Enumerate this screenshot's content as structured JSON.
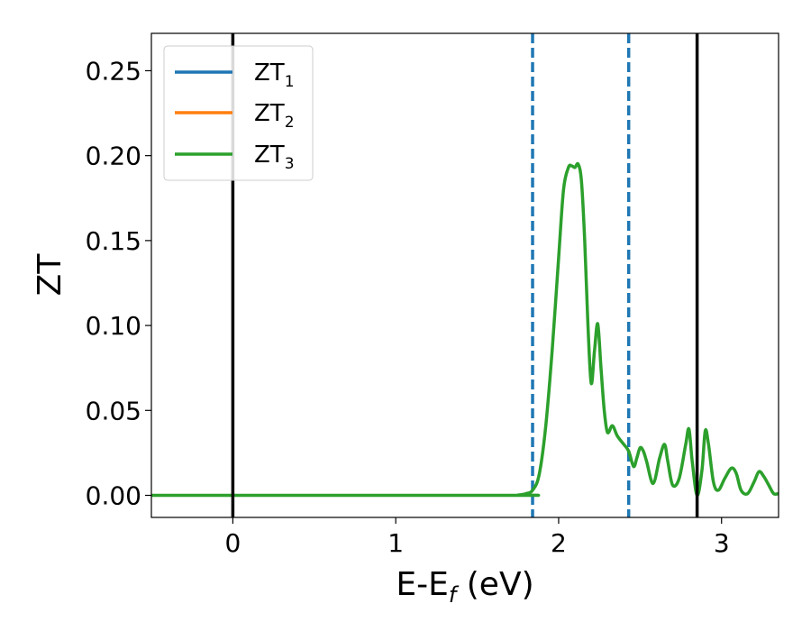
{
  "chart_data": {
    "type": "line",
    "xlabel_main": "E-E",
    "xlabel_sub": "f",
    "xlabel_unit": " (eV)",
    "ylabel": "ZT",
    "xlim": [
      -0.5,
      3.35
    ],
    "ylim": [
      -0.013,
      0.272
    ],
    "xticks": [
      {
        "value": 0,
        "label": "0"
      },
      {
        "value": 1,
        "label": "1"
      },
      {
        "value": 2,
        "label": "2"
      },
      {
        "value": 3,
        "label": "3"
      }
    ],
    "yticks": [
      {
        "value": 0.0,
        "label": "0.00"
      },
      {
        "value": 0.05,
        "label": "0.05"
      },
      {
        "value": 0.1,
        "label": "0.10"
      },
      {
        "value": 0.15,
        "label": "0.15"
      },
      {
        "value": 0.2,
        "label": "0.20"
      },
      {
        "value": 0.25,
        "label": "0.25"
      }
    ],
    "grid": false,
    "legend_position": "top-left",
    "vlines_solid": [
      0.0,
      2.85
    ],
    "vlines_dashed": [
      1.84,
      2.43
    ],
    "solid_color": "#000000",
    "dashed_color": "#1f77b4",
    "series": [
      {
        "name": "ZT",
        "sub": "1",
        "color": "#1f77b4"
      },
      {
        "name": "ZT",
        "sub": "2",
        "color": "#ff7f0e"
      },
      {
        "name": "ZT",
        "sub": "3",
        "color": "#2ca02c",
        "x": [
          -0.5,
          1.7,
          1.75,
          1.8,
          1.84,
          1.88,
          1.92,
          1.96,
          2.0,
          2.03,
          2.06,
          2.08,
          2.1,
          2.12,
          2.14,
          2.16,
          2.18,
          2.2,
          2.22,
          2.24,
          2.26,
          2.28,
          2.3,
          2.33,
          2.36,
          2.4,
          2.43,
          2.46,
          2.48,
          2.5,
          2.52,
          2.54,
          2.58,
          2.62,
          2.65,
          2.67,
          2.7,
          2.74,
          2.78,
          2.8,
          2.82,
          2.85,
          2.88,
          2.9,
          2.92,
          2.95,
          2.98,
          3.02,
          3.06,
          3.09,
          3.12,
          3.16,
          3.2,
          3.23,
          3.26,
          3.29,
          3.32,
          3.35
        ],
        "y": [
          0.0,
          0.0,
          0.0002,
          0.001,
          0.003,
          0.012,
          0.04,
          0.085,
          0.14,
          0.18,
          0.193,
          0.194,
          0.193,
          0.195,
          0.185,
          0.15,
          0.1,
          0.066,
          0.085,
          0.101,
          0.075,
          0.05,
          0.037,
          0.041,
          0.035,
          0.03,
          0.026,
          0.017,
          0.022,
          0.028,
          0.026,
          0.02,
          0.007,
          0.022,
          0.03,
          0.02,
          0.006,
          0.01,
          0.03,
          0.039,
          0.02,
          0.0,
          0.015,
          0.038,
          0.03,
          0.008,
          0.003,
          0.01,
          0.016,
          0.013,
          0.003,
          0.001,
          0.008,
          0.014,
          0.011,
          0.006,
          0.001,
          0.001
        ]
      }
    ]
  }
}
